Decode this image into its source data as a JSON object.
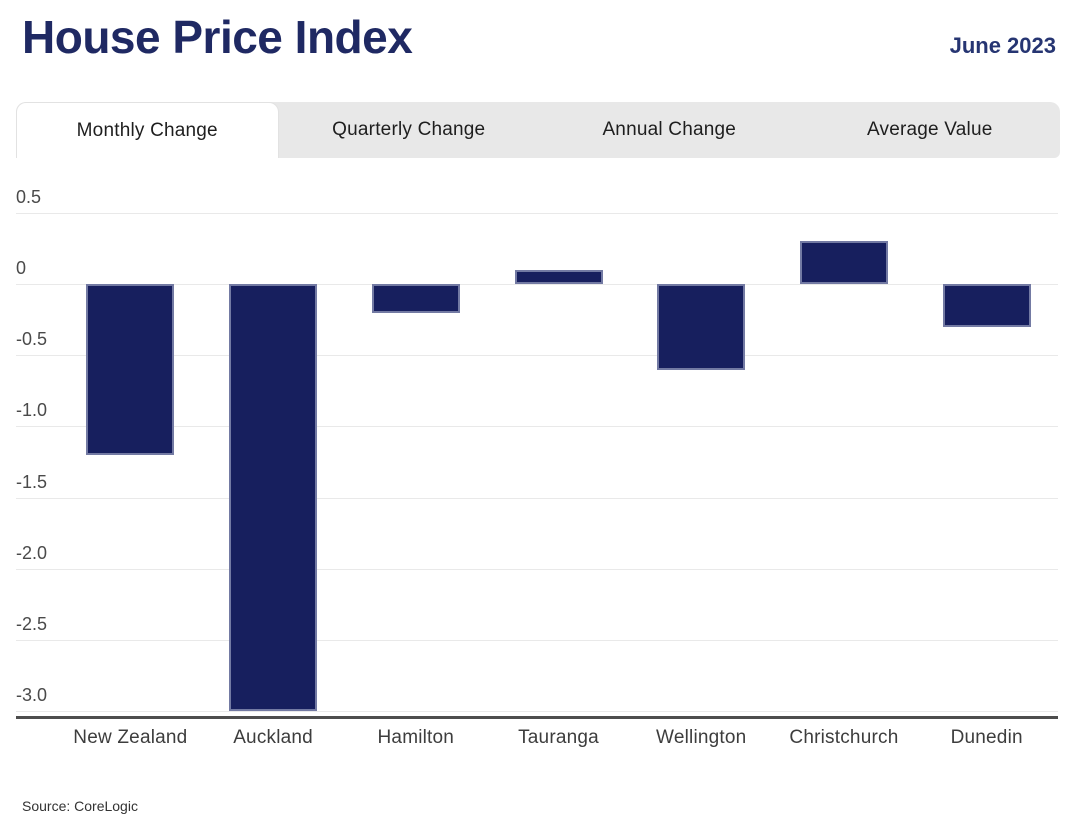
{
  "header": {
    "title": "House Price Index",
    "date": "June 2023"
  },
  "tabs": [
    {
      "label": "Monthly Change",
      "active": true
    },
    {
      "label": "Quarterly Change",
      "active": false
    },
    {
      "label": "Annual Change",
      "active": false
    },
    {
      "label": "Average Value",
      "active": false
    }
  ],
  "chart_data": {
    "type": "bar",
    "title": "House Price Index",
    "subtitle": "Monthly Change",
    "categories": [
      "New Zealand",
      "Auckland",
      "Hamilton",
      "Tauranga",
      "Wellington",
      "Christchurch",
      "Dunedin"
    ],
    "values": [
      -1.2,
      -3.0,
      -0.2,
      0.1,
      -0.6,
      0.3,
      -0.3
    ],
    "yticks": [
      {
        "value": 0.5,
        "label": "0.5"
      },
      {
        "value": 0,
        "label": "0"
      },
      {
        "value": -0.5,
        "label": "-0.5"
      },
      {
        "value": -1.0,
        "label": "-1.0"
      },
      {
        "value": -1.5,
        "label": "-1.5"
      },
      {
        "value": -2.0,
        "label": "-2.0"
      },
      {
        "value": -2.5,
        "label": "-2.5"
      },
      {
        "value": -3.0,
        "label": "-3.0"
      }
    ],
    "ylim": [
      0.8,
      -3.04
    ],
    "xlabel": "",
    "ylabel": "",
    "grid": true,
    "legend": false,
    "bar_color": "#171f5e",
    "bar_border_color": "#b1b7d2"
  },
  "footer": {
    "source": "Source: CoreLogic"
  },
  "colors": {
    "title_navy": "#1f2963",
    "date_navy": "#263572",
    "tab_strip_bg": "#e8e8e8",
    "tab_active_bg": "#ffffff",
    "tab_text": "#1e1e1e",
    "gridline": "#e9e9e9",
    "axis_line": "#4d4d4d",
    "tick_label": "#4a4a4a",
    "bar": "#171f5e"
  }
}
